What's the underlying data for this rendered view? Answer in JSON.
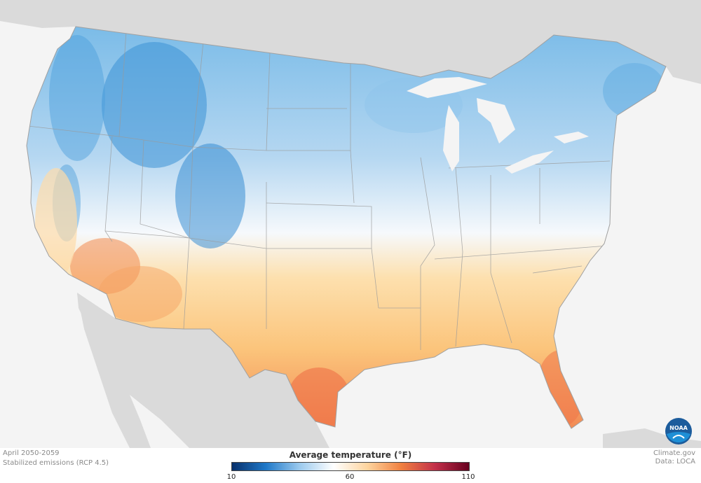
{
  "caption": {
    "period": "April 2050-2059",
    "scenario": "Stabilized emissions (RCP 4.5)"
  },
  "credits": {
    "site": "Climate.gov",
    "data_source": "Data: LOCA"
  },
  "legend": {
    "title": "Average temperature (°F)",
    "ticks": [
      "10",
      "60",
      "110"
    ],
    "colors": [
      "#08306b",
      "#1f78c8",
      "#9ccaee",
      "#ffffff",
      "#fdd49e",
      "#f08040",
      "#c2304a",
      "#67001f"
    ]
  },
  "logo": {
    "text": "NOAA",
    "icon": "noaa-logo"
  },
  "map": {
    "region": "Contiguous United States",
    "land_color": "#d8d8d8",
    "water_color": "#f4f4f4"
  }
}
